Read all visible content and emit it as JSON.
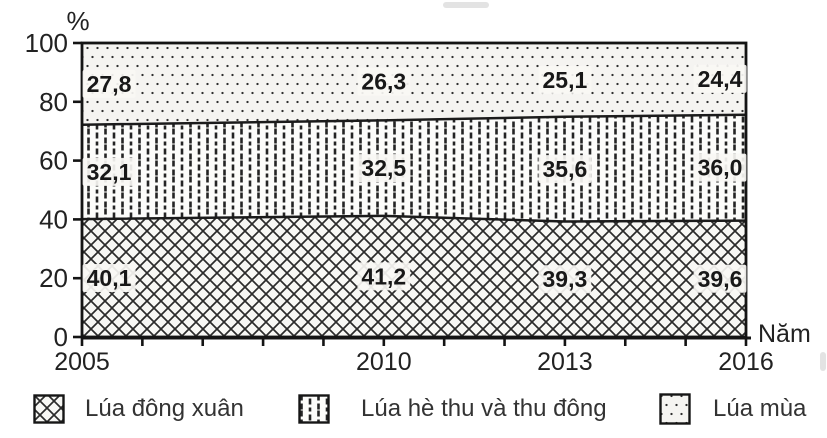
{
  "chart_data": {
    "type": "area",
    "stacked": true,
    "percent_stacked": true,
    "title": "",
    "ylabel": "%",
    "xlabel": "Năm",
    "x": [
      2005,
      2010,
      2013,
      2016
    ],
    "x_tick_labels": [
      "2005",
      "2010",
      "2013",
      "2016"
    ],
    "x_minor_tick_step_years": 1,
    "xlim": [
      2005,
      2016
    ],
    "ylim": [
      0,
      100
    ],
    "y_ticks": [
      0,
      20,
      40,
      60,
      80,
      100
    ],
    "grid": false,
    "legend_position": "bottom",
    "series": [
      {
        "name": "Lúa đông xuân",
        "pattern": "diagonal-crosshatch",
        "values": [
          40.1,
          41.2,
          39.3,
          39.6
        ],
        "labels": [
          "40,1",
          "41,2",
          "39,3",
          "39,6"
        ]
      },
      {
        "name": "Lúa hè thu và thu đông",
        "pattern": "vertical-dashes",
        "values": [
          32.1,
          32.5,
          35.6,
          36.0
        ],
        "labels": [
          "32,1",
          "32,5",
          "35,6",
          "36,0"
        ]
      },
      {
        "name": "Lúa mùa",
        "pattern": "dots",
        "values": [
          27.8,
          26.3,
          25.1,
          24.4
        ],
        "labels": [
          "27,8",
          "26,3",
          "25,1",
          "24,4"
        ]
      }
    ]
  },
  "colors": {
    "ink": "#1b1b1b",
    "axis_text": "#222222",
    "value_text": "#181818",
    "halo": "#f8f7f4",
    "band_bg_bottom": "#f7f7f4",
    "band_bg_middle": "#fcfcfa",
    "band_bg_top": "#f5f4f1"
  }
}
